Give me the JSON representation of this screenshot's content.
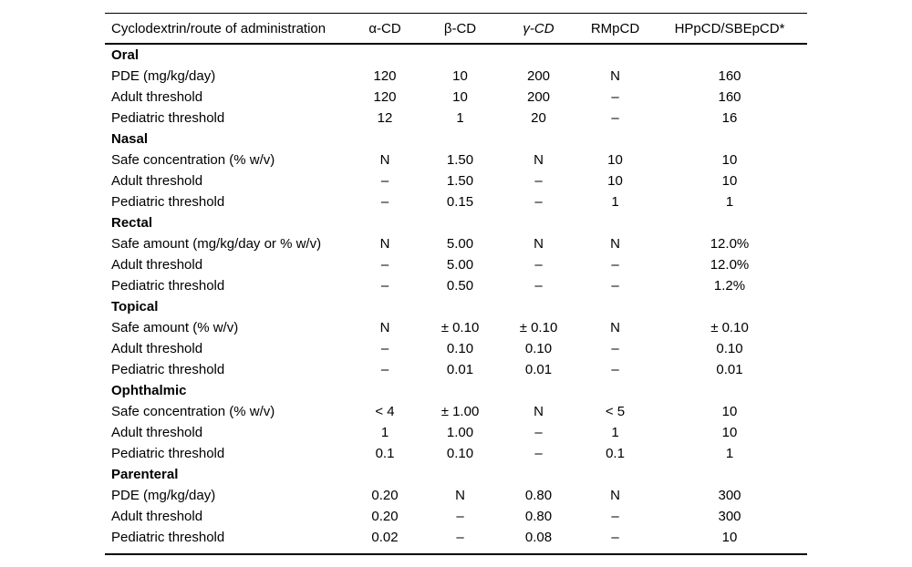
{
  "table": {
    "columns": [
      "Cyclodextrin/route of administration",
      "α-CD",
      "β-CD",
      "γ-CD",
      "RMpCD",
      "HPpCD/SBEpCD*"
    ],
    "sections": [
      {
        "name": "Oral",
        "rows": [
          {
            "label": "PDE (mg/kg/day)",
            "values": [
              "120",
              "10",
              "200",
              "N",
              "160"
            ]
          },
          {
            "label": "Adult threshold",
            "values": [
              "120",
              "10",
              "200",
              "–",
              "160"
            ]
          },
          {
            "label": "Pediatric threshold",
            "values": [
              "12",
              "1",
              "20",
              "–",
              "16"
            ]
          }
        ]
      },
      {
        "name": "Nasal",
        "rows": [
          {
            "label": "Safe concentration (% w/v)",
            "values": [
              "N",
              "1.50",
              "N",
              "10",
              "10"
            ]
          },
          {
            "label": "Adult threshold",
            "values": [
              "–",
              "1.50",
              "–",
              "10",
              "10"
            ]
          },
          {
            "label": "Pediatric threshold",
            "values": [
              "–",
              "0.15",
              "–",
              "1",
              "1"
            ]
          }
        ]
      },
      {
        "name": "Rectal",
        "rows": [
          {
            "label": "Safe amount (mg/kg/day or % w/v)",
            "values": [
              "N",
              "5.00",
              "N",
              "N",
              "12.0%"
            ]
          },
          {
            "label": "Adult threshold",
            "values": [
              "–",
              "5.00",
              "–",
              "–",
              "12.0%"
            ]
          },
          {
            "label": "Pediatric threshold",
            "values": [
              "–",
              "0.50",
              "–",
              "–",
              "1.2%"
            ]
          }
        ]
      },
      {
        "name": "Topical",
        "rows": [
          {
            "label": "Safe amount (% w/v)",
            "values": [
              "N",
              "± 0.10",
              "± 0.10",
              "N",
              "± 0.10"
            ]
          },
          {
            "label": "Adult threshold",
            "values": [
              "–",
              "0.10",
              "0.10",
              "–",
              "0.10"
            ]
          },
          {
            "label": "Pediatric threshold",
            "values": [
              "–",
              "0.01",
              "0.01",
              "–",
              "0.01"
            ]
          }
        ]
      },
      {
        "name": "Ophthalmic",
        "rows": [
          {
            "label": "Safe concentration (% w/v)",
            "values": [
              "< 4",
              "± 1.00",
              "N",
              "< 5",
              "10"
            ]
          },
          {
            "label": "Adult threshold",
            "values": [
              "1",
              "1.00",
              "–",
              "1",
              "10"
            ]
          },
          {
            "label": "Pediatric threshold",
            "values": [
              "0.1",
              "0.10",
              "–",
              "0.1",
              "1"
            ]
          }
        ]
      },
      {
        "name": "Parenteral",
        "rows": [
          {
            "label": "PDE (mg/kg/day)",
            "values": [
              "0.20",
              "N",
              "0.80",
              "N",
              "300"
            ]
          },
          {
            "label": "Adult threshold",
            "values": [
              "0.20",
              "–",
              "0.80",
              "–",
              "300"
            ]
          },
          {
            "label": "Pediatric threshold",
            "values": [
              "0.02",
              "–",
              "0.08",
              "–",
              "10"
            ]
          }
        ]
      }
    ]
  }
}
